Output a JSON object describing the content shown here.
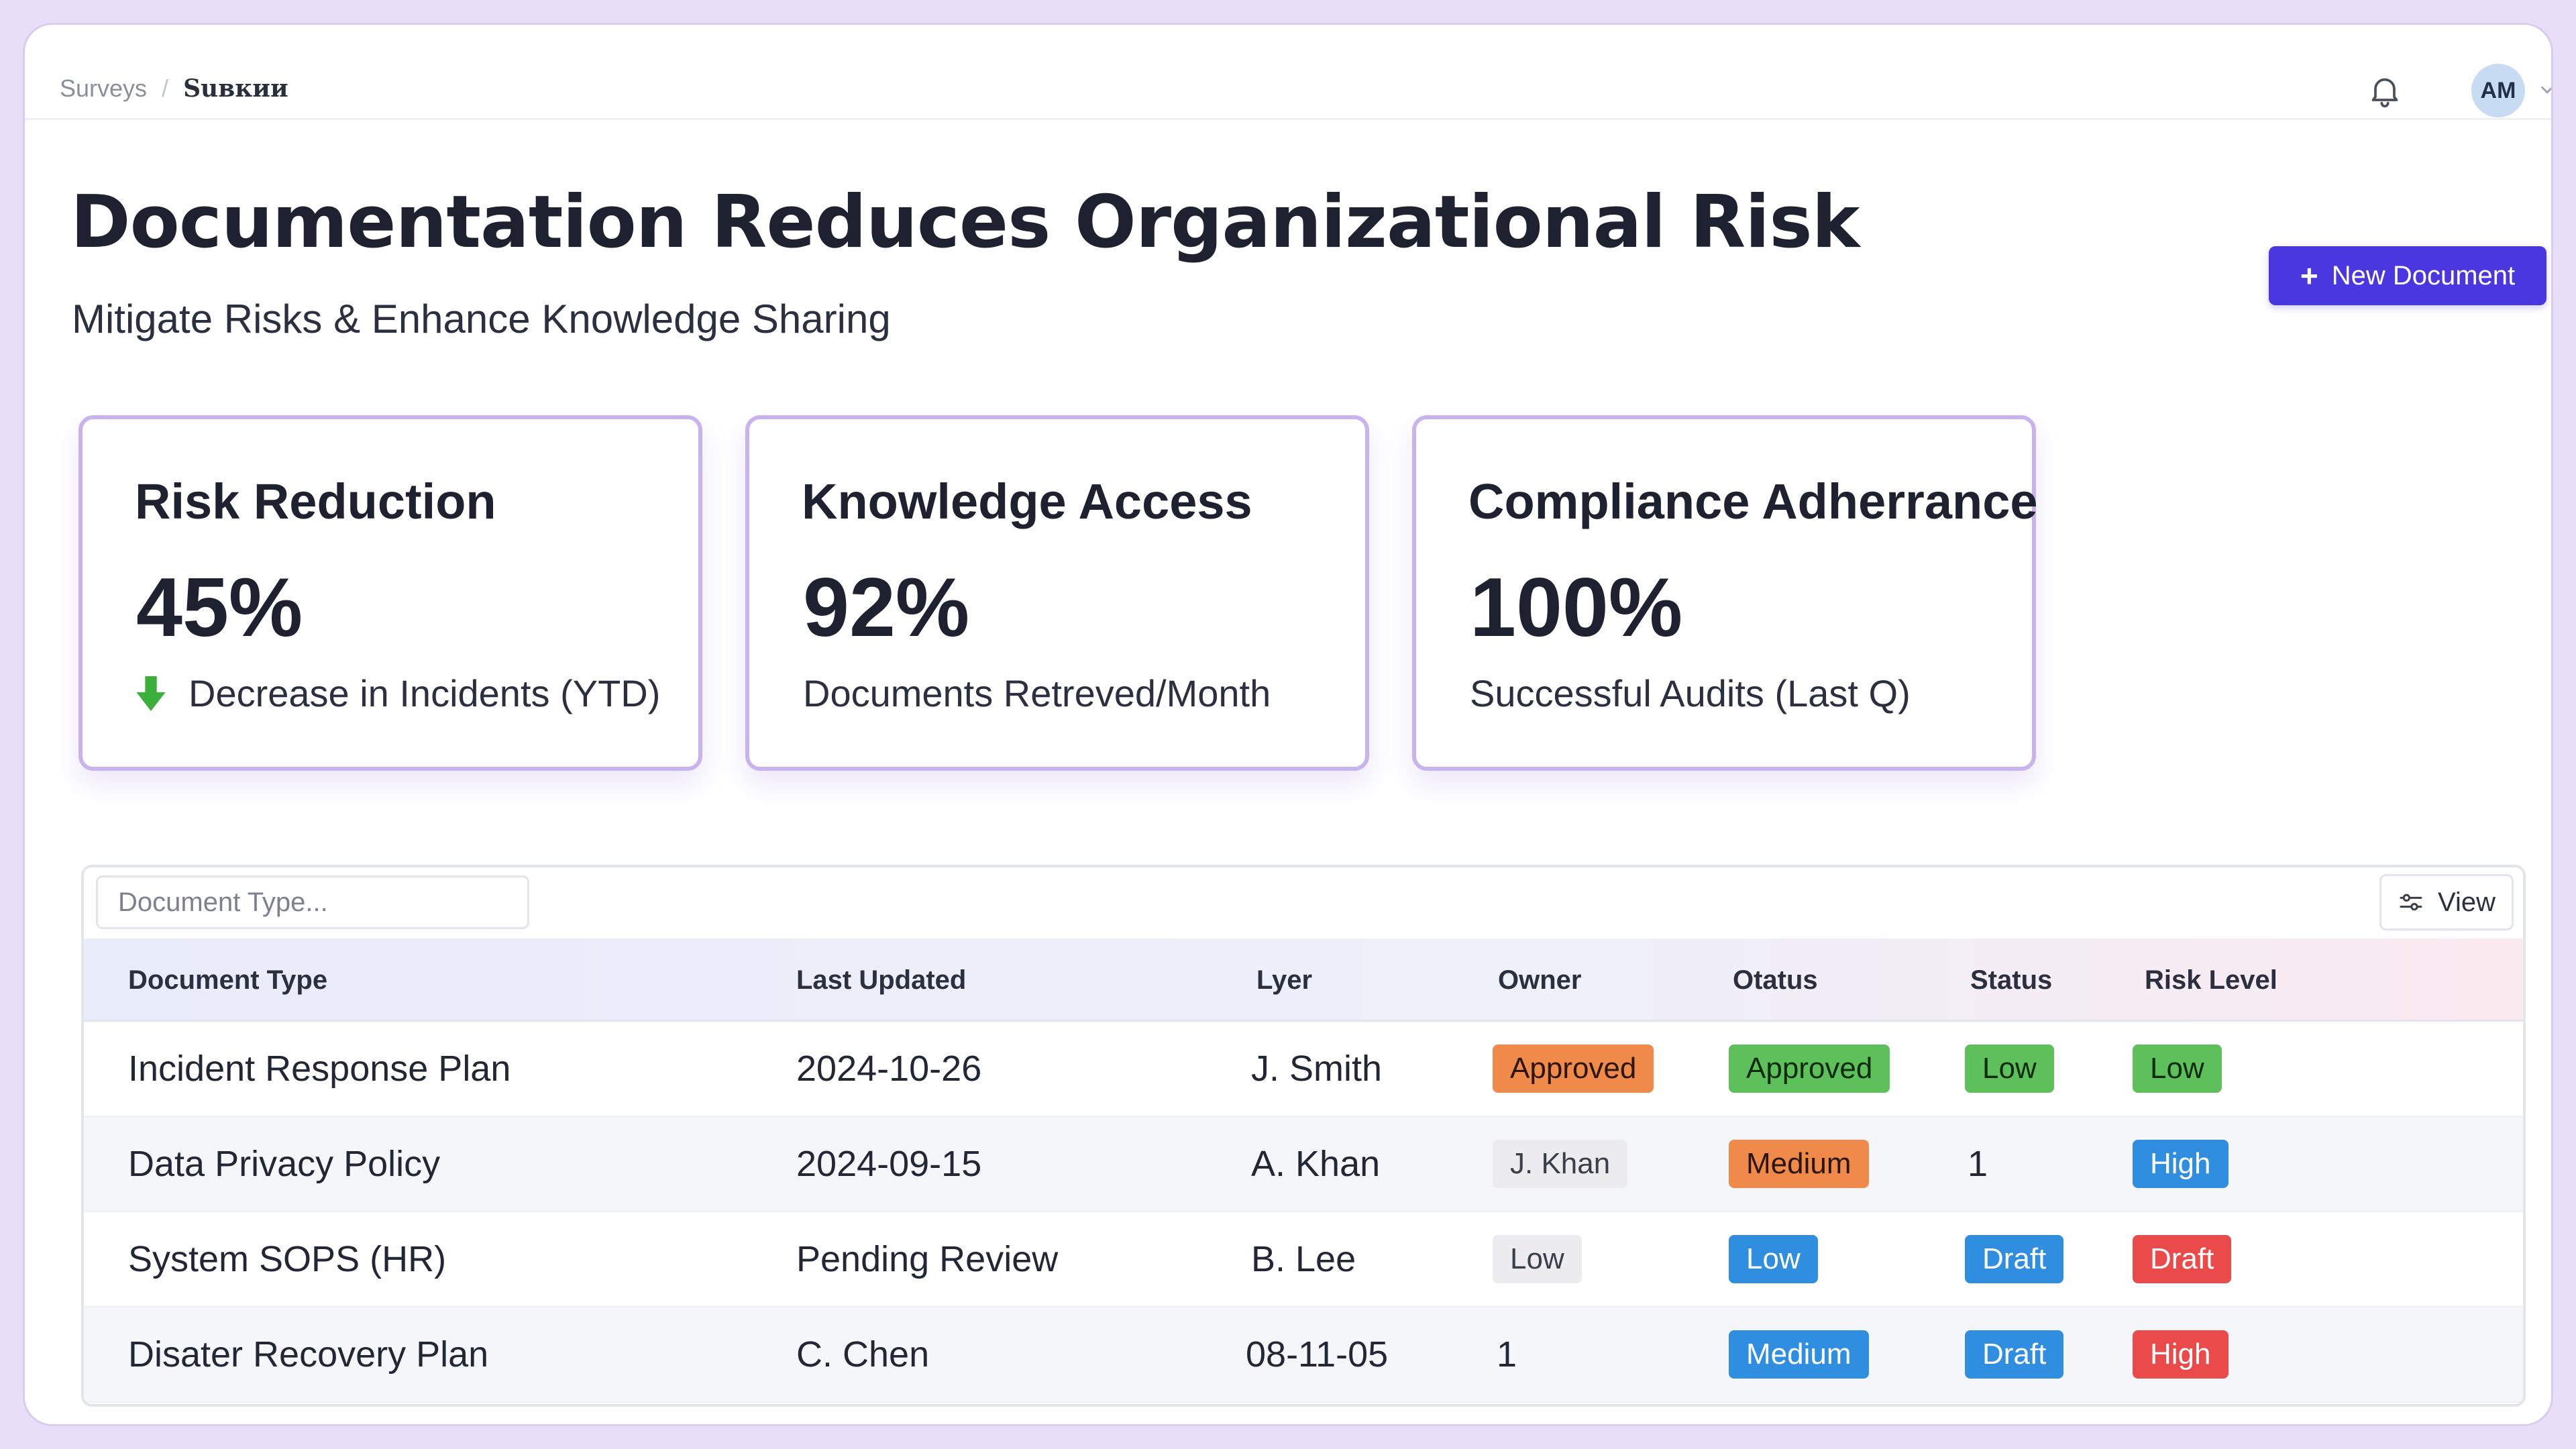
{
  "breadcrumb": [
    "Surveys",
    "Suвкии"
  ],
  "user": {
    "initials": "AM"
  },
  "header": {
    "title": "Documentation Reduces Organizational Risk",
    "subtitle": "Mitigate Risks & Enhance Knowledge Sharing",
    "new_button": "New Document"
  },
  "metrics": [
    {
      "title": "Risk Reduction",
      "value": "45%",
      "caption": "Decrease in Incidents (YTD)",
      "icon": "arrow-down-icon"
    },
    {
      "title": "Knowledge Access",
      "value": "92%",
      "caption": "Documents Retreved/Month"
    },
    {
      "title": "Compliance Adherrance",
      "value": "100%",
      "caption": "Successful Audits (Last Q)"
    }
  ],
  "table": {
    "filter_placeholder": "Document Type...",
    "view_label": "View",
    "headers": [
      "Document Type",
      "Last Updated",
      "Lyer",
      "Owner",
      "Otatus",
      "Status",
      "Risk Level"
    ],
    "rows": [
      {
        "doc": "Incident Response Plan",
        "updated": "2024-10-26",
        "lyer": "J. Smith",
        "owner": "Approved",
        "otatus": "Approved",
        "status": "Low",
        "risk": "Low"
      },
      {
        "doc": "Data Privacy Policy",
        "updated": "2024-09-15",
        "lyer": "A. Khan",
        "owner": "J. Khan",
        "otatus": "Medium",
        "status": "1",
        "risk": "High"
      },
      {
        "doc": "System SOPS (HR)",
        "updated": "Pending Review",
        "lyer": "B. Lee",
        "owner": "Low",
        "otatus": "Low",
        "status": "Draft",
        "risk": "Draft"
      },
      {
        "doc": "Disater Recovery Plan",
        "updated": "C. Chen",
        "lyer": "08-11-05",
        "owner": "1",
        "otatus": "Medium",
        "status": "Draft",
        "risk": "High"
      }
    ]
  },
  "colors": {
    "accent": "#4b37e0",
    "card_border": "#c8b3ee",
    "orange": "#f08a4b",
    "green": "#5ec05a",
    "blue": "#2f8ee0",
    "red": "#ea4a4a"
  }
}
